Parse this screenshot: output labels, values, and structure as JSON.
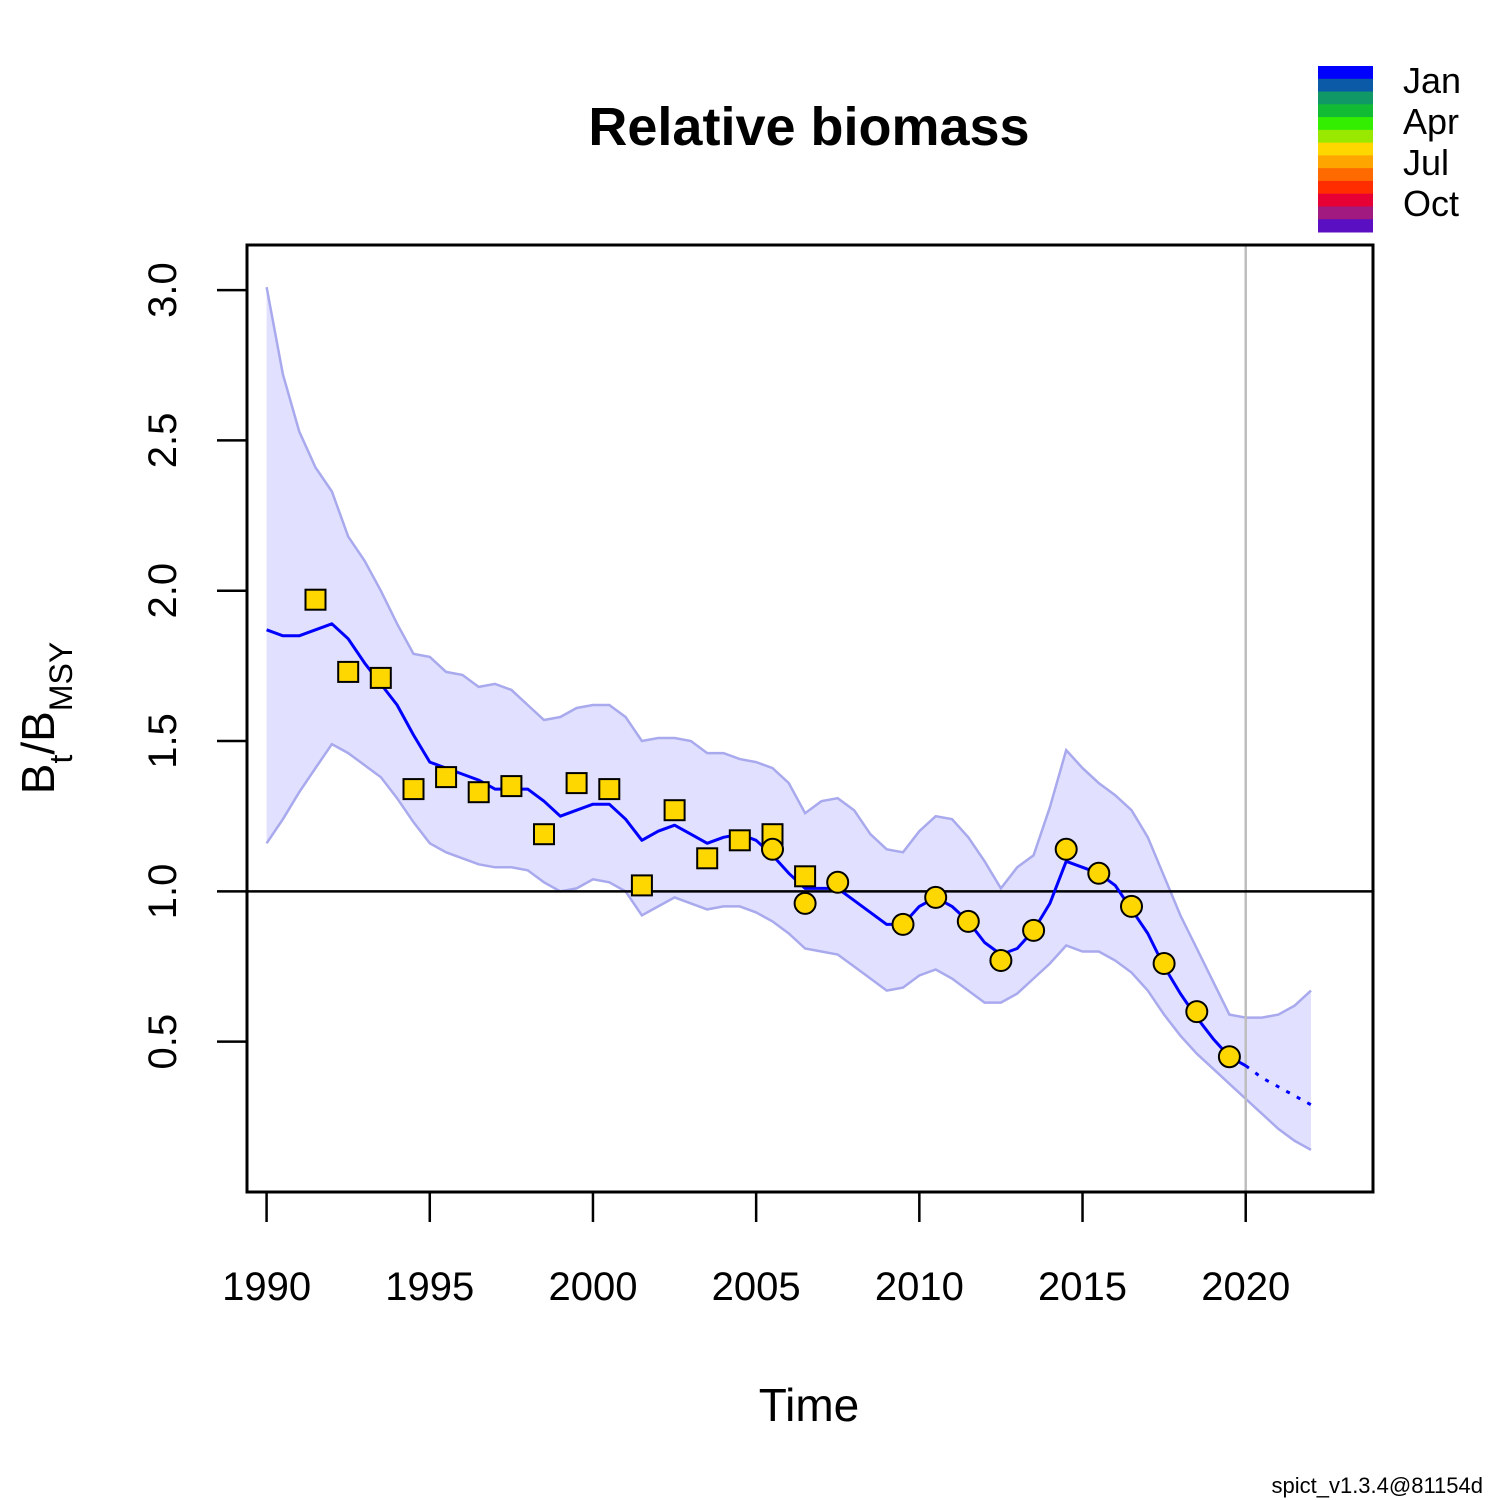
{
  "chart_data": {
    "type": "line",
    "title": "Relative biomass",
    "xlabel": "Time",
    "ylabel": {
      "base1": "B",
      "sub1": "t",
      "sep": "/",
      "base2": "B",
      "sub2": "MSY"
    },
    "footer": "spict_v1.3.4@81154d",
    "xlim": [
      1989.4,
      2023.9
    ],
    "ylim": [
      0.0,
      3.15
    ],
    "x_ticks": [
      1990,
      1995,
      2000,
      2005,
      2010,
      2015,
      2020
    ],
    "y_ticks": [
      0.5,
      1.0,
      1.5,
      2.0,
      2.5,
      3.0
    ],
    "x_tick_labels": [
      "1990",
      "1995",
      "2000",
      "2005",
      "2010",
      "2015",
      "2020"
    ],
    "y_tick_labels": [
      "0.5",
      "1.0",
      "1.5",
      "2.0",
      "2.5",
      "3.0"
    ],
    "reference_line_y": 1.0,
    "vertical_line_x": 2020,
    "estimate_line": {
      "x": [
        1990.0,
        1990.5,
        1991.0,
        1991.5,
        1992.0,
        1992.5,
        1993.0,
        1993.5,
        1994.0,
        1994.5,
        1995.0,
        1995.5,
        1996.0,
        1996.5,
        1997.0,
        1997.5,
        1998.0,
        1998.5,
        1999.0,
        1999.5,
        2000.0,
        2000.5,
        2001.0,
        2001.5,
        2002.0,
        2002.5,
        2003.0,
        2003.5,
        2004.0,
        2004.5,
        2005.0,
        2005.5,
        2006.0,
        2006.5,
        2007.0,
        2007.5,
        2008.0,
        2008.5,
        2009.0,
        2009.5,
        2010.0,
        2010.5,
        2011.0,
        2011.5,
        2012.0,
        2012.5,
        2013.0,
        2013.5,
        2014.0,
        2014.5,
        2015.0,
        2015.5,
        2016.0,
        2016.5,
        2017.0,
        2017.5,
        2018.0,
        2018.5,
        2019.0,
        2019.5,
        2020.0
      ],
      "y": [
        1.87,
        1.85,
        1.85,
        1.87,
        1.89,
        1.84,
        1.76,
        1.69,
        1.62,
        1.52,
        1.43,
        1.41,
        1.39,
        1.37,
        1.34,
        1.34,
        1.34,
        1.3,
        1.25,
        1.27,
        1.29,
        1.29,
        1.24,
        1.17,
        1.2,
        1.22,
        1.19,
        1.16,
        1.18,
        1.19,
        1.17,
        1.12,
        1.06,
        1.01,
        1.01,
        1.01,
        0.97,
        0.93,
        0.89,
        0.89,
        0.95,
        0.98,
        0.95,
        0.9,
        0.83,
        0.79,
        0.81,
        0.87,
        0.96,
        1.1,
        1.08,
        1.06,
        1.02,
        0.94,
        0.86,
        0.75,
        0.66,
        0.58,
        0.51,
        0.45,
        0.42
      ]
    },
    "forecast_line": {
      "x": [
        2020.0,
        2020.5,
        2021.0,
        2021.5,
        2022.0
      ],
      "y": [
        0.42,
        0.38,
        0.35,
        0.32,
        0.29
      ]
    },
    "ci_band": {
      "x": [
        1990.0,
        1990.5,
        1991.0,
        1991.5,
        1992.0,
        1992.5,
        1993.0,
        1993.5,
        1994.0,
        1994.5,
        1995.0,
        1995.5,
        1996.0,
        1996.5,
        1997.0,
        1997.5,
        1998.0,
        1998.5,
        1999.0,
        1999.5,
        2000.0,
        2000.5,
        2001.0,
        2001.5,
        2002.0,
        2002.5,
        2003.0,
        2003.5,
        2004.0,
        2004.5,
        2005.0,
        2005.5,
        2006.0,
        2006.5,
        2007.0,
        2007.5,
        2008.0,
        2008.5,
        2009.0,
        2009.5,
        2010.0,
        2010.5,
        2011.0,
        2011.5,
        2012.0,
        2012.5,
        2013.0,
        2013.5,
        2014.0,
        2014.5,
        2015.0,
        2015.5,
        2016.0,
        2016.5,
        2017.0,
        2017.5,
        2018.0,
        2018.5,
        2019.0,
        2019.5,
        2020.0,
        2020.5,
        2021.0,
        2021.5,
        2022.0
      ],
      "lower": [
        1.16,
        1.24,
        1.33,
        1.41,
        1.49,
        1.46,
        1.42,
        1.38,
        1.31,
        1.23,
        1.16,
        1.13,
        1.11,
        1.09,
        1.08,
        1.08,
        1.07,
        1.03,
        1.0,
        1.01,
        1.04,
        1.03,
        1.0,
        0.92,
        0.95,
        0.98,
        0.96,
        0.94,
        0.95,
        0.95,
        0.93,
        0.9,
        0.86,
        0.81,
        0.8,
        0.79,
        0.75,
        0.71,
        0.67,
        0.68,
        0.72,
        0.74,
        0.71,
        0.67,
        0.63,
        0.63,
        0.66,
        0.71,
        0.76,
        0.82,
        0.8,
        0.8,
        0.77,
        0.73,
        0.67,
        0.59,
        0.52,
        0.46,
        0.41,
        0.36,
        0.31,
        0.26,
        0.21,
        0.17,
        0.14
      ],
      "upper": [
        3.01,
        2.72,
        2.53,
        2.41,
        2.33,
        2.18,
        2.1,
        2.0,
        1.89,
        1.79,
        1.78,
        1.73,
        1.72,
        1.68,
        1.69,
        1.67,
        1.62,
        1.57,
        1.58,
        1.61,
        1.62,
        1.62,
        1.58,
        1.5,
        1.51,
        1.51,
        1.5,
        1.46,
        1.46,
        1.44,
        1.43,
        1.41,
        1.36,
        1.26,
        1.3,
        1.31,
        1.27,
        1.19,
        1.14,
        1.13,
        1.2,
        1.25,
        1.24,
        1.18,
        1.1,
        1.01,
        1.08,
        1.12,
        1.28,
        1.47,
        1.41,
        1.36,
        1.32,
        1.27,
        1.18,
        1.05,
        0.92,
        0.81,
        0.7,
        0.59,
        0.58,
        0.58,
        0.59,
        0.62,
        0.67
      ]
    },
    "series": [
      {
        "marker": "square",
        "color": "#FFD700",
        "x": [
          1991.5,
          1992.5,
          1993.5,
          1994.5,
          1995.5,
          1996.5,
          1997.5,
          1998.5,
          1999.5,
          2000.5,
          2001.5,
          2002.5,
          2003.5,
          2004.5,
          2005.5,
          2006.5
        ],
        "y": [
          1.97,
          1.73,
          1.71,
          1.34,
          1.38,
          1.33,
          1.35,
          1.19,
          1.36,
          1.34,
          1.02,
          1.27,
          1.11,
          1.17,
          1.19,
          1.05
        ]
      },
      {
        "marker": "circle",
        "color": "#FFD700",
        "x": [
          2005.5,
          2006.5,
          2007.5,
          2009.5,
          2010.5,
          2011.5,
          2012.5,
          2013.5,
          2014.5,
          2015.5,
          2016.5,
          2017.5,
          2018.5,
          2019.5
        ],
        "y": [
          1.14,
          0.96,
          1.03,
          0.89,
          0.98,
          0.9,
          0.77,
          0.87,
          1.14,
          1.06,
          0.95,
          0.76,
          0.6,
          0.45
        ]
      }
    ],
    "colors": {
      "estimate": "#0000FF",
      "band_fill": "#E1E1FF",
      "band_edge": "#A9A9EE",
      "point_fill": "#FFD700",
      "vertical_line": "#BEBEBE"
    },
    "legend": {
      "position": "top-right",
      "labels": [
        "Jan",
        "Apr",
        "Jul",
        "Oct"
      ],
      "colors": [
        "#0000FF",
        "#0B5AA8",
        "#109966",
        "#11BB33",
        "#33EE00",
        "#99E800",
        "#FFD700",
        "#FFA500",
        "#FF6A00",
        "#FF2D00",
        "#E60033",
        "#A01A80",
        "#5B0FC2"
      ]
    }
  }
}
